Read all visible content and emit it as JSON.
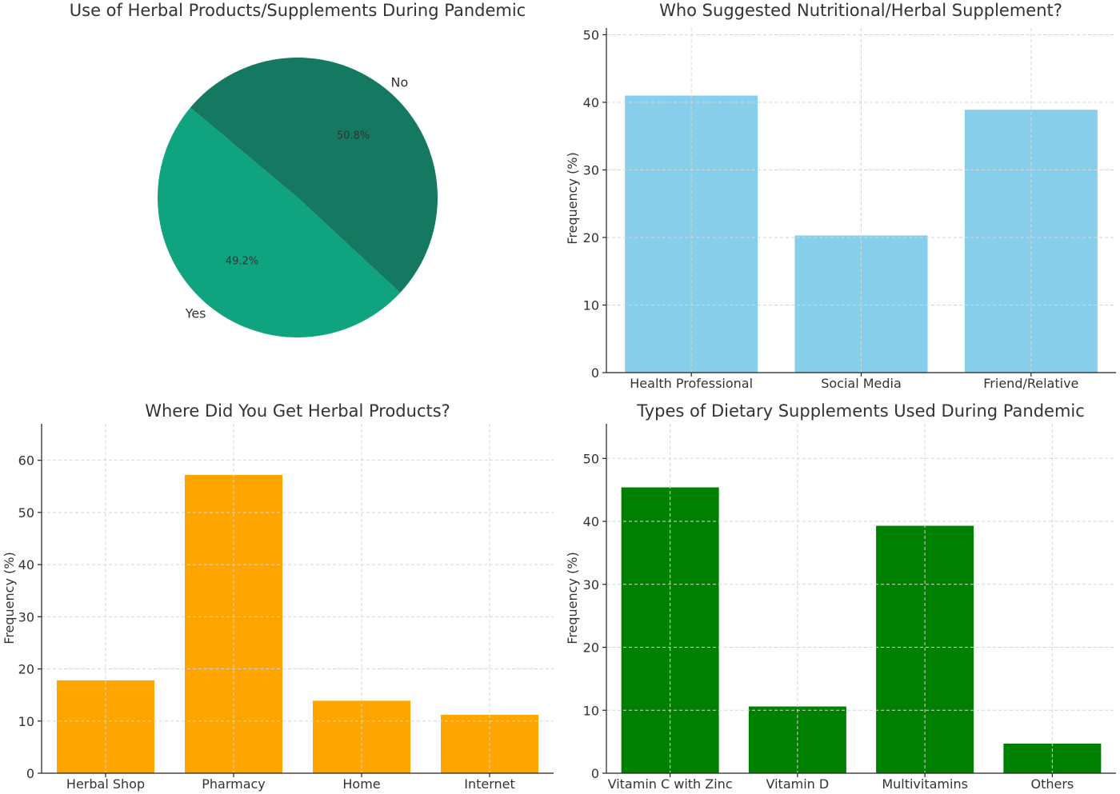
{
  "chart_data": [
    {
      "type": "pie",
      "title": "Use of Herbal Products/Supplements During Pandemic",
      "labels": [
        "Yes",
        "No"
      ],
      "values": [
        49.2,
        50.8
      ],
      "value_labels": [
        "49.2%",
        "50.8%"
      ],
      "colors": [
        "#10a37f",
        "#147960"
      ]
    },
    {
      "type": "bar",
      "title": "Who Suggested Nutritional/Herbal Supplement?",
      "categories": [
        "Health Professional",
        "Social Media",
        "Friend/Relative"
      ],
      "values": [
        41,
        20.3,
        38.9
      ],
      "ylabel": "Frequency (%)",
      "ylim": [
        0,
        51
      ],
      "yticks": [
        0,
        10,
        20,
        30,
        40,
        50
      ],
      "color": "#87ceeb",
      "grid": true
    },
    {
      "type": "bar",
      "title": "Where Did You Get Herbal Products?",
      "categories": [
        "Herbal Shop",
        "Pharmacy",
        "Home",
        "Internet"
      ],
      "values": [
        17.8,
        57.2,
        13.9,
        11.2
      ],
      "ylabel": "Frequency (%)",
      "ylim": [
        0,
        67
      ],
      "yticks": [
        0,
        10,
        20,
        30,
        40,
        50,
        60
      ],
      "color": "#ffa500",
      "grid": true
    },
    {
      "type": "bar",
      "title": "Types of Dietary Supplements Used During Pandemic",
      "categories": [
        "Vitamin C with Zinc",
        "Vitamin D",
        "Multivitamins",
        "Others"
      ],
      "values": [
        45.4,
        10.6,
        39.3,
        4.7
      ],
      "ylabel": "Frequency (%)",
      "ylim": [
        0,
        55.5
      ],
      "yticks": [
        0,
        10,
        20,
        30,
        40,
        50
      ],
      "color": "#008000",
      "grid": true
    }
  ]
}
